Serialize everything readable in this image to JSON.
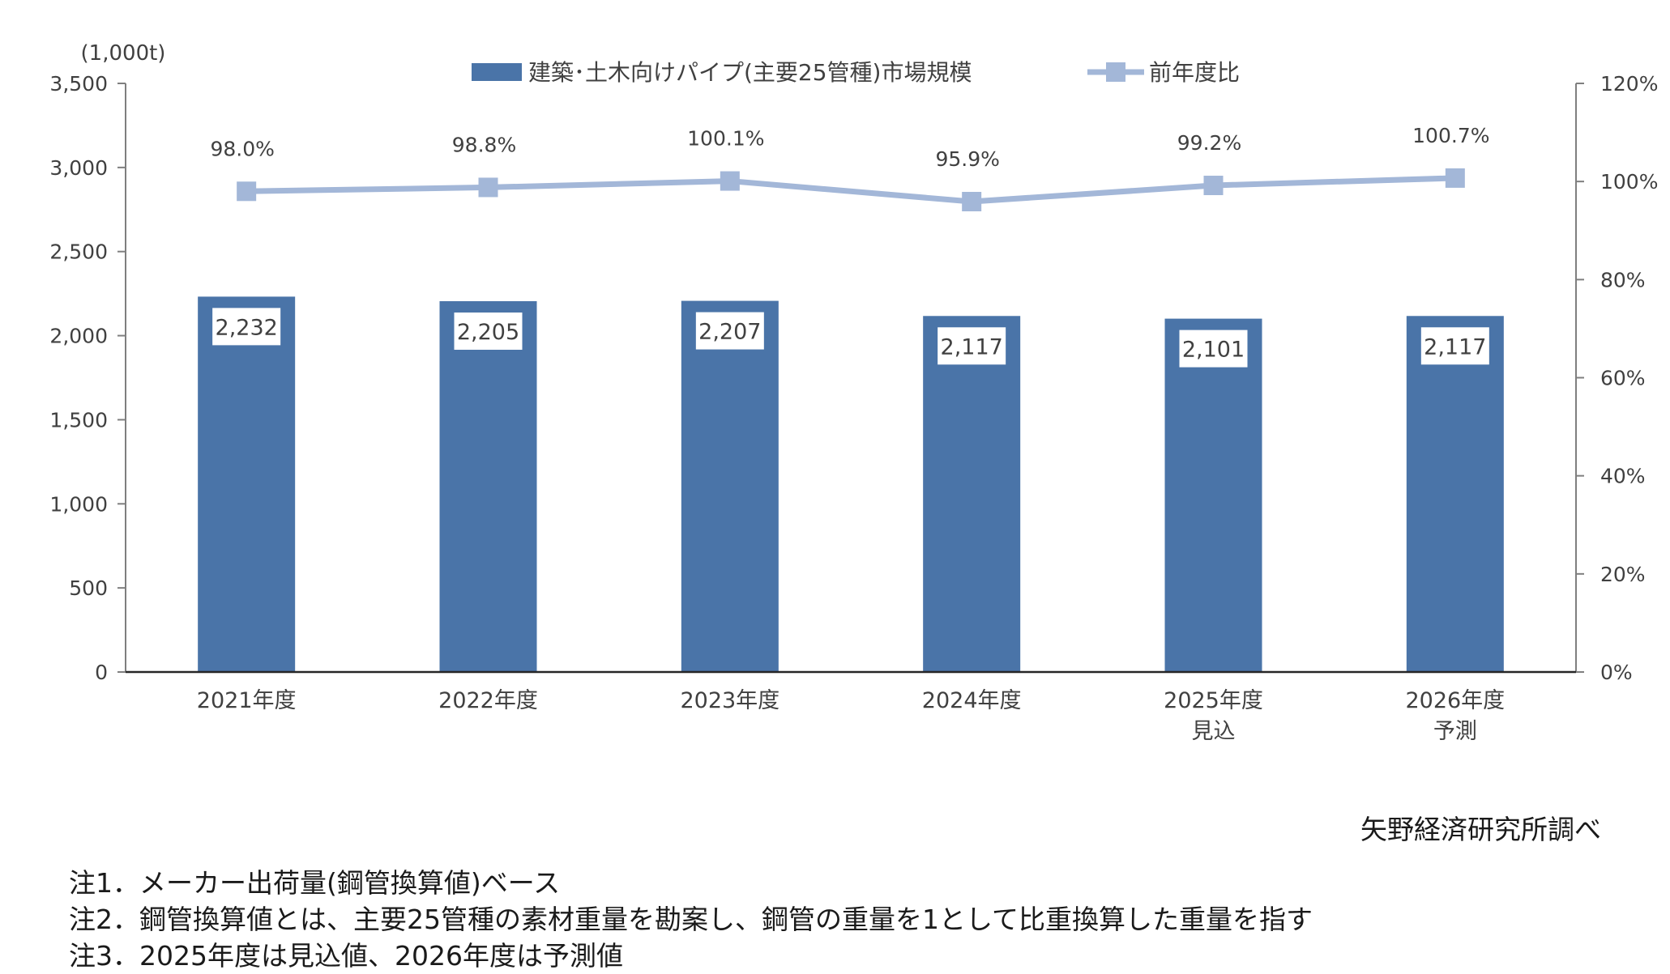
{
  "chart_data": {
    "type": "bar",
    "categories": [
      [
        "2021年度"
      ],
      [
        "2022年度"
      ],
      [
        "2023年度"
      ],
      [
        "2024年度"
      ],
      [
        "2025年度",
        "見込"
      ],
      [
        "2026年度",
        "予測"
      ]
    ],
    "series": [
      {
        "name": "建築･土木向けパイプ(主要25管種)市場規模",
        "type": "bar",
        "axis": "left",
        "values": [
          2232,
          2205,
          2207,
          2117,
          2101,
          2117
        ],
        "labels": [
          "2,232",
          "2,205",
          "2,207",
          "2,117",
          "2,101",
          "2,117"
        ],
        "color": "#4a74a8"
      },
      {
        "name": "前年度比",
        "type": "line",
        "axis": "right",
        "values": [
          98.0,
          98.8,
          100.1,
          95.9,
          99.2,
          100.7
        ],
        "labels": [
          "98.0%",
          "98.8%",
          "100.1%",
          "95.9%",
          "99.2%",
          "100.7%"
        ],
        "color": "#a3b7d8"
      }
    ],
    "y_left": {
      "unit_label": "(1,000t)",
      "ylim": [
        0,
        3500
      ],
      "ticks": [
        0,
        500,
        1000,
        1500,
        2000,
        2500,
        3000,
        3500
      ],
      "tick_labels": [
        "0",
        "500",
        "1,000",
        "1,500",
        "2,000",
        "2,500",
        "3,000",
        "3,500"
      ]
    },
    "y_right": {
      "ylim": [
        0,
        120
      ],
      "ticks": [
        0,
        20,
        40,
        60,
        80,
        100,
        120
      ],
      "tick_labels": [
        "0%",
        "20%",
        "40%",
        "60%",
        "80%",
        "100%",
        "120%"
      ]
    },
    "legend_position": "top",
    "grid": false
  },
  "source": "矢野経済研究所調べ",
  "notes": [
    "注1．メーカー出荷量(鋼管換算値)ベース",
    "注2．鋼管換算値とは、主要25管種の素材重量を勘案し、鋼管の重量を1として比重換算した重量を指す",
    "注3．2025年度は見込値、2026年度は予測値"
  ]
}
